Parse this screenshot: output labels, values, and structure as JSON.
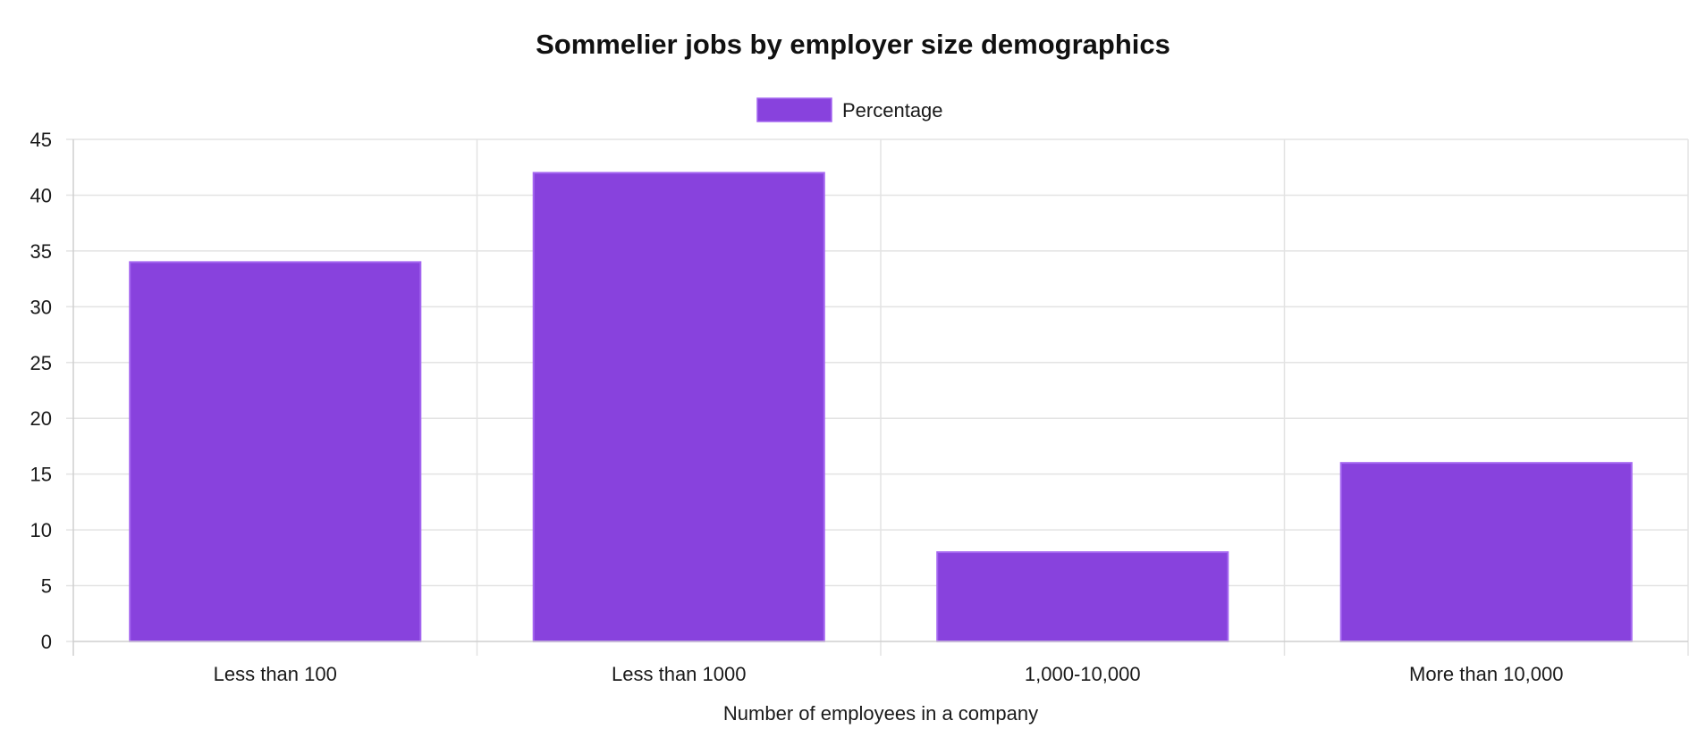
{
  "chart_data": {
    "type": "bar",
    "title": "Sommelier jobs by employer size demographics",
    "xlabel": "Number of employees in a company",
    "ylabel": "",
    "categories": [
      "Less than 100",
      "Less than 1000",
      "1,000-10,000",
      "More than 10,000"
    ],
    "series": [
      {
        "name": "Percentage",
        "values": [
          34,
          42,
          8,
          16
        ],
        "color": "#8842dd",
        "border_color": "#a466f0"
      }
    ],
    "ylim": [
      0,
      45
    ],
    "yticks": [
      "0",
      "5",
      "10",
      "15",
      "20",
      "25",
      "30",
      "35",
      "40",
      "45"
    ],
    "grid": true,
    "legend_position": "top-center"
  }
}
